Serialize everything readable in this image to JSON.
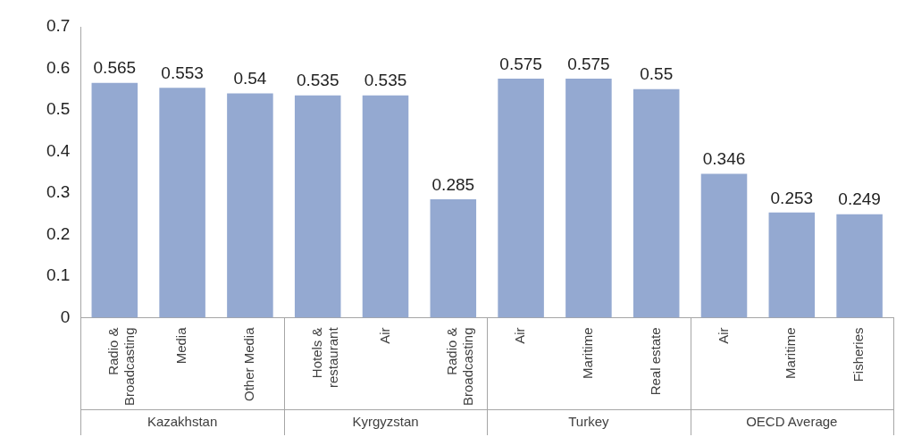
{
  "chart_data": {
    "type": "bar",
    "categories": [
      "Radio & Broadcasting",
      "Media",
      "Other Media",
      "Hotels & restaurant",
      "Air",
      "Radio & Broadcasting",
      "Air",
      "Maritime",
      "Real estate",
      "Air",
      "Maritime",
      "Fisheries"
    ],
    "values": [
      0.565,
      0.553,
      0.54,
      0.535,
      0.535,
      0.285,
      0.575,
      0.575,
      0.55,
      0.346,
      0.253,
      0.249
    ],
    "color": "#94a9d1",
    "ylim": [
      0,
      0.7
    ],
    "yticks": [
      0,
      0.1,
      0.2,
      0.3,
      0.4,
      0.5,
      0.6,
      0.7
    ],
    "grid": false,
    "legend": false,
    "data_labels": true,
    "annotations": [
      "Kazakhstan",
      "Kyrgyzstan",
      "Turkey",
      "OECD Average"
    ]
  }
}
